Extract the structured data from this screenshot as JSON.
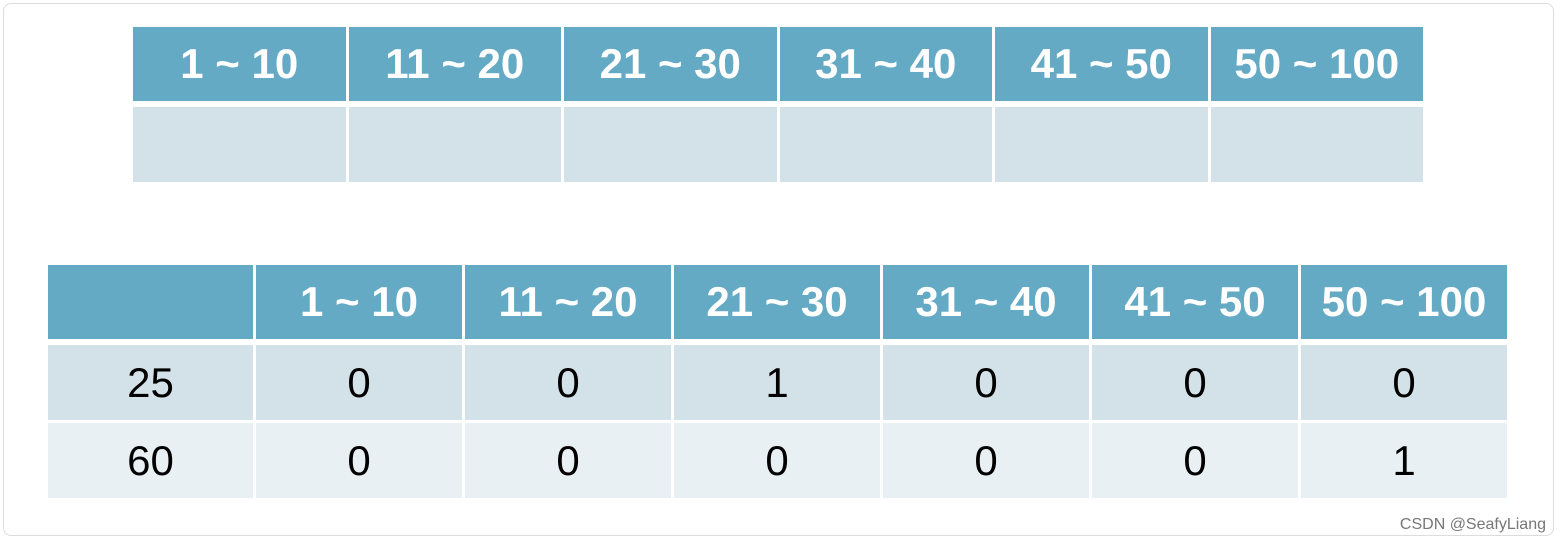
{
  "table_1": {
    "header": [
      "1 ~ 10",
      "11 ~ 20",
      "21 ~ 30",
      "31 ~ 40",
      "41 ~ 50",
      "50 ~ 100"
    ]
  },
  "table_2": {
    "header": [
      "1 ~ 10",
      "11 ~ 20",
      "21 ~ 30",
      "31 ~ 40",
      "41 ~ 50",
      "50 ~ 100"
    ],
    "rows": [
      [
        25,
        0,
        0,
        1,
        0,
        0,
        0
      ],
      [
        60,
        0,
        0,
        0,
        0,
        0,
        1
      ]
    ]
  },
  "watermark": "CSDN @SeafyLiang"
}
